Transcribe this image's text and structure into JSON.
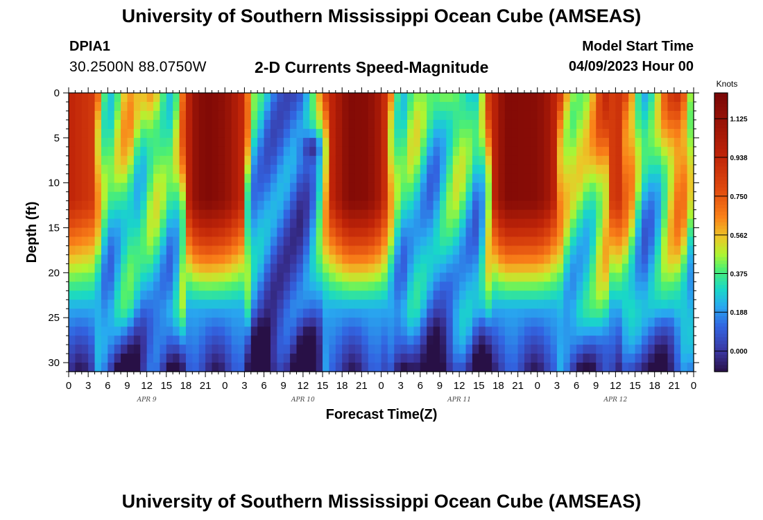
{
  "header": {
    "title": "University of Southern Mississippi Ocean Cube (AMSEAS)",
    "station_id": "DPIA1",
    "station_coords": "30.2500N  88.0750W",
    "plot_title": "2-D Currents Speed-Magnitude",
    "model_start_label": "Model Start Time",
    "model_start_value": "04/09/2023 Hour 00"
  },
  "footer": {
    "title": "University of Southern Mississippi Ocean Cube (AMSEAS)"
  },
  "chart_data": {
    "type": "heatmap",
    "title": "2-D Currents Speed-Magnitude",
    "xlabel": "Forecast Time(Z)",
    "ylabel": "Depth (ft)",
    "xlim": [
      0,
      96
    ],
    "ylim": [
      0,
      31
    ],
    "x_tick_labels": [
      "0",
      "3",
      "6",
      "9",
      "12",
      "15",
      "18",
      "21",
      "0",
      "3",
      "6",
      "9",
      "12",
      "15",
      "18",
      "21",
      "0",
      "3",
      "6",
      "9",
      "12",
      "15",
      "18",
      "21",
      "0",
      "3",
      "6",
      "9",
      "12",
      "15",
      "18",
      "21",
      "0"
    ],
    "date_labels": [
      {
        "label": "APR 9",
        "hour": 12
      },
      {
        "label": "APR 10",
        "hour": 36
      },
      {
        "label": "APR 11",
        "hour": 60
      },
      {
        "label": "APR 12",
        "hour": 84
      }
    ],
    "y_ticks": [
      0,
      5,
      10,
      15,
      20,
      25,
      30
    ],
    "colorbar": {
      "unit": "Knots",
      "ticks": [
        "0.000",
        "0.188",
        "0.375",
        "0.562",
        "0.750",
        "0.938",
        "1.125"
      ],
      "range": [
        -0.1,
        1.25
      ]
    },
    "surface_speed_profile": {
      "hours": [
        0,
        4,
        6,
        9,
        11,
        13,
        16,
        19,
        21,
        24,
        27,
        28,
        31,
        34,
        36,
        38,
        40,
        43,
        46,
        48,
        51,
        53,
        56,
        59,
        60,
        63,
        65,
        67,
        72,
        74,
        77,
        80,
        82,
        85,
        87,
        88,
        90,
        92,
        94,
        96
      ],
      "speeds": [
        0.95,
        0.85,
        0.35,
        0.62,
        0.4,
        0.6,
        0.35,
        1.1,
        1.22,
        1.15,
        0.9,
        0.35,
        0.18,
        0.15,
        0.1,
        0.35,
        0.9,
        1.2,
        1.18,
        1.02,
        0.35,
        0.5,
        0.25,
        0.5,
        0.52,
        0.25,
        0.9,
        1.2,
        1.18,
        1.05,
        0.55,
        0.52,
        0.8,
        0.9,
        0.65,
        0.3,
        0.35,
        0.7,
        0.9,
        0.45
      ],
      "units": "knots"
    },
    "notable_features": [
      {
        "description": "high-speed surface jet",
        "hours": [
          16,
          25
        ],
        "depth_ft": [
          0,
          22
        ]
      },
      {
        "description": "high-speed surface jet",
        "hours": [
          40,
          48
        ],
        "depth_ft": [
          0,
          22
        ]
      },
      {
        "description": "high-speed surface jet",
        "hours": [
          66,
          77
        ],
        "depth_ft": [
          0,
          22
        ]
      },
      {
        "description": "minimum near-surface speed",
        "hours": [
          37,
          38
        ],
        "depth_ft": [
          5,
          7
        ]
      }
    ]
  }
}
